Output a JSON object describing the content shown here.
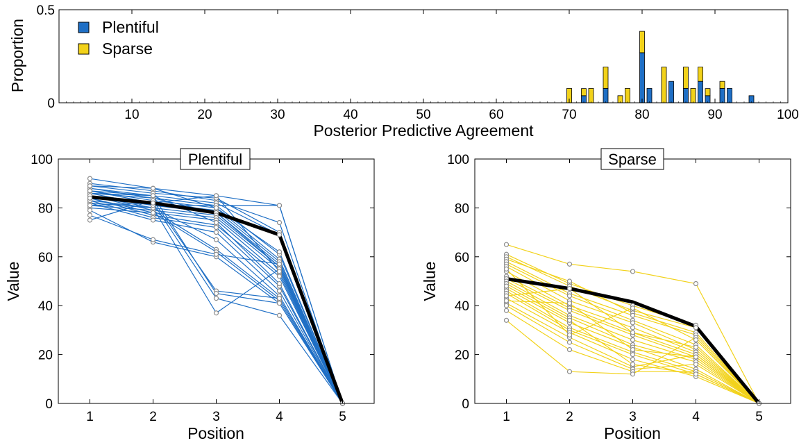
{
  "colors": {
    "plentiful": "#1f6fc5",
    "sparse": "#f2d21a",
    "mean_line": "#000000",
    "marker_edge": "#8c8c8c"
  },
  "chart_data": [
    {
      "type": "bar",
      "subtype": "stacked-histogram",
      "xlabel": "Posterior Predictive Agreement",
      "ylabel": "Proportion",
      "xlim": [
        0,
        100
      ],
      "ylim": [
        0,
        0.5
      ],
      "xticks": [
        "10",
        "20",
        "30",
        "40",
        "50",
        "60",
        "70",
        "80",
        "90",
        "100"
      ],
      "yticks": [
        "0",
        "0.5"
      ],
      "legend": {
        "position": "top-left",
        "entries": [
          "Plentiful",
          "Sparse"
        ]
      },
      "x": [
        70,
        72,
        73,
        75,
        77,
        78,
        80,
        81,
        83,
        84,
        86,
        87,
        88,
        89,
        91,
        92,
        95
      ],
      "series": [
        {
          "name": "Plentiful",
          "values": [
            0,
            0.038,
            0,
            0.077,
            0,
            0,
            0.269,
            0.077,
            0,
            0.115,
            0.077,
            0,
            0.115,
            0.038,
            0.077,
            0.077,
            0.038
          ]
        },
        {
          "name": "Sparse",
          "values": [
            0.077,
            0.038,
            0.077,
            0.115,
            0.038,
            0.077,
            0.115,
            0,
            0.192,
            0,
            0.115,
            0.077,
            0.077,
            0.038,
            0.038,
            0,
            0
          ]
        }
      ]
    },
    {
      "type": "line",
      "title": "Plentiful",
      "xlabel": "Position",
      "ylabel": "Value",
      "xlim": [
        0.5,
        5.5
      ],
      "ylim": [
        0,
        100
      ],
      "xticks": [
        "1",
        "2",
        "3",
        "4",
        "5"
      ],
      "yticks": [
        "0",
        "20",
        "40",
        "60",
        "80",
        "100"
      ],
      "x": [
        1,
        2,
        3,
        4,
        5
      ],
      "mean": [
        84.5,
        82,
        78,
        69,
        0
      ],
      "series": [
        [
          92,
          88,
          85,
          81,
          0
        ],
        [
          90,
          87,
          83,
          74,
          0
        ],
        [
          89,
          86,
          84,
          70,
          0
        ],
        [
          88,
          85,
          82,
          69,
          0
        ],
        [
          88,
          84,
          81,
          61,
          0
        ],
        [
          87,
          83,
          80,
          59,
          0
        ],
        [
          87,
          82,
          79,
          58,
          0
        ],
        [
          86,
          84,
          78,
          57,
          0
        ],
        [
          86,
          81,
          78,
          56,
          0
        ],
        [
          85,
          80,
          77,
          56,
          0
        ],
        [
          85,
          79,
          76,
          55,
          0
        ],
        [
          84,
          78,
          75,
          53,
          0
        ],
        [
          84,
          77,
          73,
          52,
          0
        ],
        [
          83,
          76,
          72,
          48,
          0
        ],
        [
          82,
          75,
          70,
          46,
          0
        ],
        [
          82,
          80,
          67,
          44,
          0
        ],
        [
          81,
          79,
          63,
          43,
          0
        ],
        [
          80,
          78,
          62,
          42,
          0
        ],
        [
          79,
          66,
          60,
          41,
          0
        ],
        [
          77,
          67,
          61,
          57,
          0
        ],
        [
          75,
          83,
          46,
          43,
          0
        ],
        [
          86,
          85,
          45,
          41,
          0
        ],
        [
          81,
          82,
          43,
          36,
          0
        ],
        [
          83,
          80,
          37,
          55,
          0
        ],
        [
          85,
          81,
          81,
          81,
          0
        ],
        [
          89,
          88,
          80,
          62,
          0
        ],
        [
          87,
          85,
          74,
          49,
          0
        ],
        [
          84,
          82,
          85,
          54,
          0
        ]
      ]
    },
    {
      "type": "line",
      "title": "Sparse",
      "xlabel": "Position",
      "ylabel": "Value",
      "xlim": [
        0.5,
        5.5
      ],
      "ylim": [
        0,
        100
      ],
      "xticks": [
        "1",
        "2",
        "3",
        "4",
        "5"
      ],
      "yticks": [
        "0",
        "20",
        "40",
        "60",
        "80",
        "100"
      ],
      "x": [
        1,
        2,
        3,
        4,
        5
      ],
      "mean": [
        51,
        47,
        41.5,
        31.5,
        0
      ],
      "series": [
        [
          65,
          57,
          54,
          49,
          0
        ],
        [
          61,
          49,
          40,
          32,
          0
        ],
        [
          60,
          48,
          38,
          31,
          0
        ],
        [
          59,
          50,
          37,
          29,
          0
        ],
        [
          58,
          45,
          36,
          28,
          0
        ],
        [
          57,
          44,
          34,
          24,
          0
        ],
        [
          56,
          42,
          33,
          22,
          0
        ],
        [
          54,
          40,
          31,
          21,
          0
        ],
        [
          52,
          39,
          29,
          20,
          0
        ],
        [
          51,
          38,
          28,
          19,
          0
        ],
        [
          50,
          36,
          26,
          18,
          0
        ],
        [
          49,
          35,
          24,
          17,
          0
        ],
        [
          47,
          33,
          23,
          14,
          0
        ],
        [
          46,
          31,
          21,
          13,
          0
        ],
        [
          45,
          30,
          20,
          12,
          0
        ],
        [
          43,
          29,
          18,
          11,
          0
        ],
        [
          41,
          27,
          15,
          20,
          0
        ],
        [
          40,
          25,
          14,
          16,
          0
        ],
        [
          38,
          22,
          13,
          13,
          0
        ],
        [
          34,
          13,
          12,
          27,
          0
        ],
        [
          44,
          47,
          29,
          23,
          0
        ],
        [
          48,
          34,
          16,
          12,
          0
        ],
        [
          55,
          28,
          39,
          26,
          0
        ],
        [
          42,
          41,
          22,
          19,
          0
        ]
      ]
    }
  ]
}
